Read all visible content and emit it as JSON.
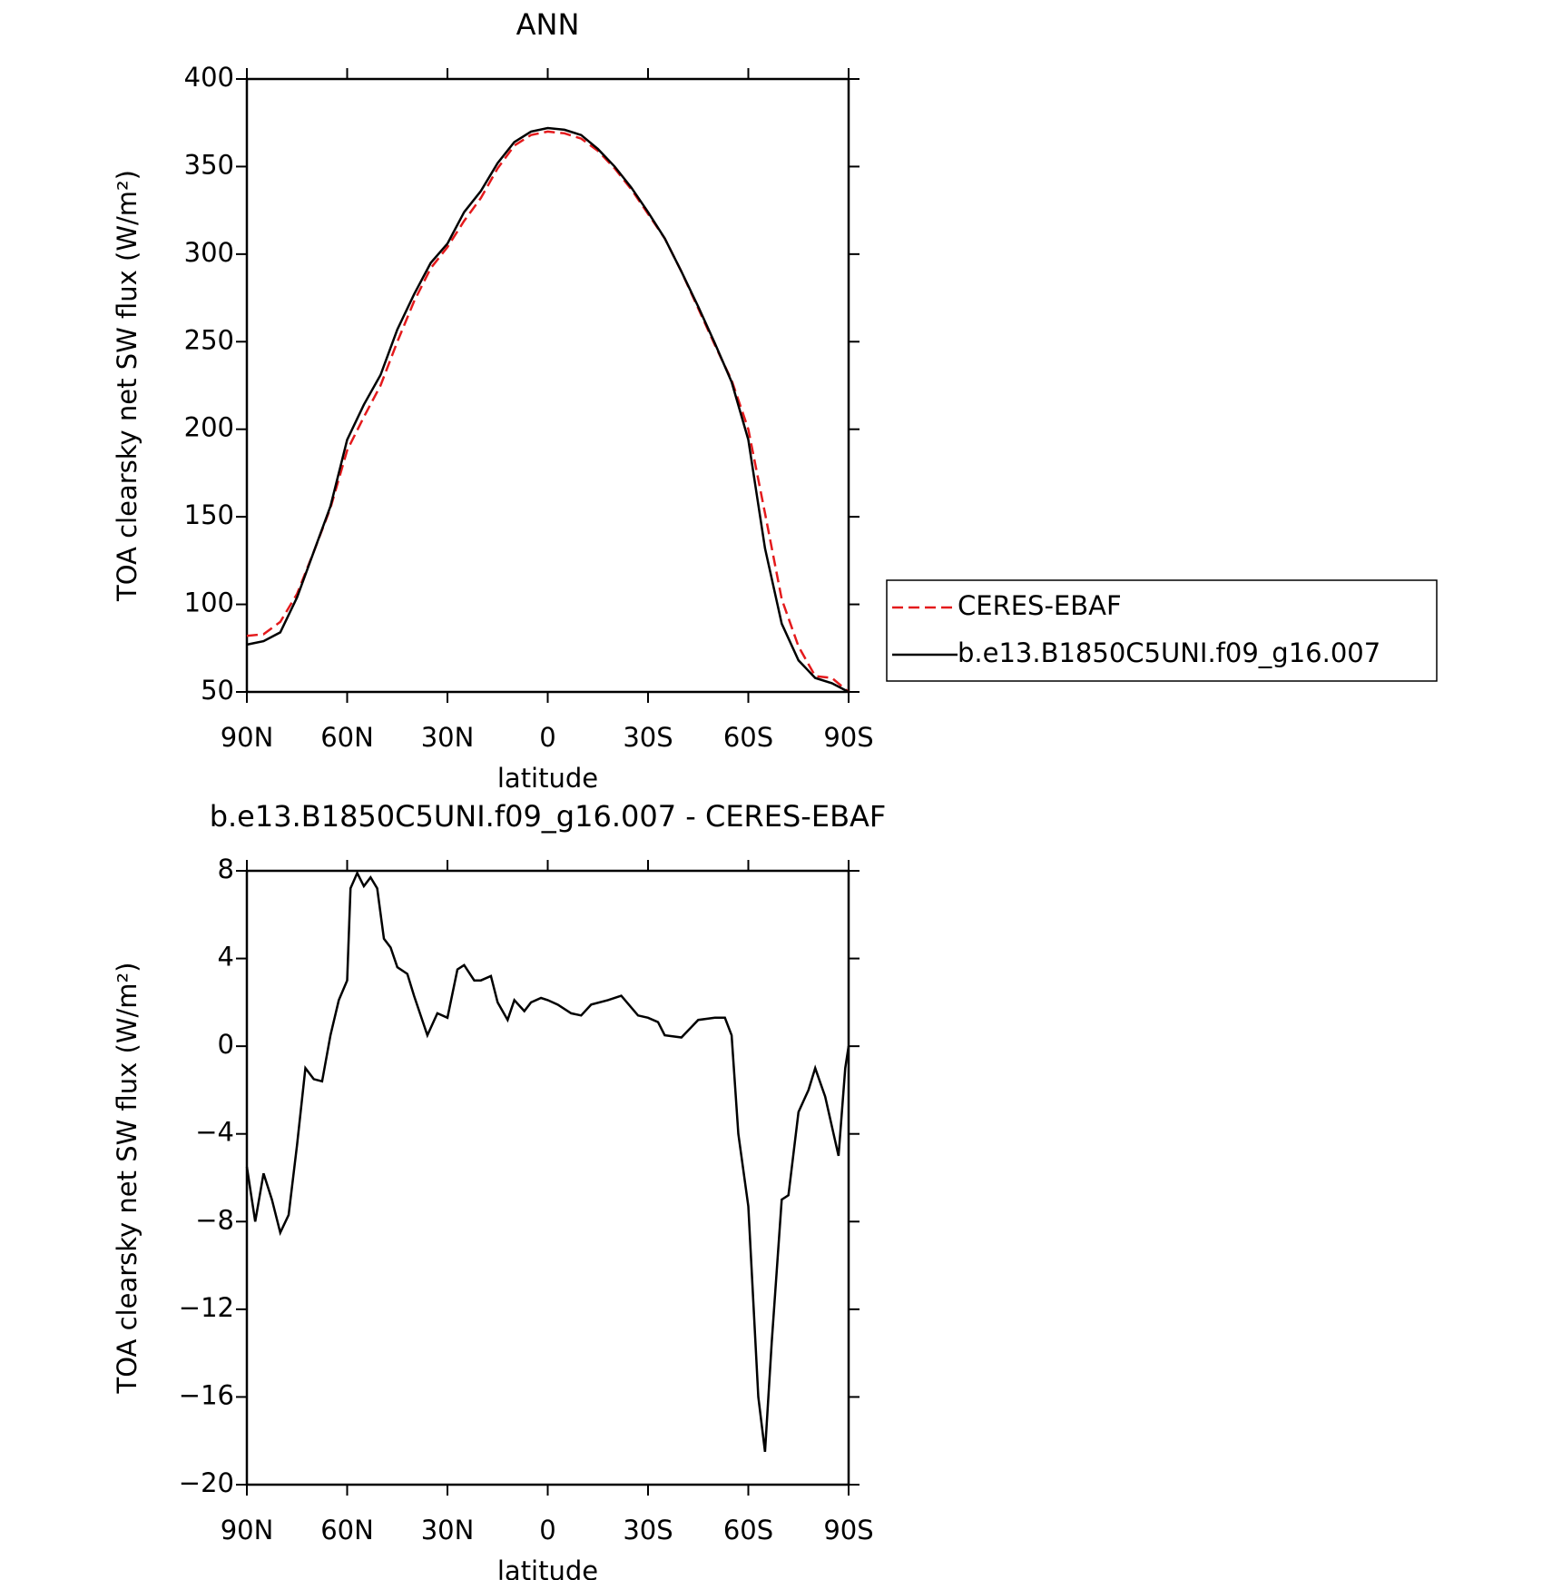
{
  "chart_data": [
    {
      "type": "line",
      "title": "ANN",
      "xlabel": "latitude",
      "ylabel": "TOA clearsky net SW flux (W/m²)",
      "x": [
        90,
        85,
        80,
        75,
        70,
        65,
        60,
        55,
        50,
        45,
        40,
        35,
        30,
        25,
        20,
        15,
        10,
        5,
        0,
        -5,
        -10,
        -15,
        -20,
        -25,
        -30,
        -35,
        -40,
        -45,
        -50,
        -55,
        -60,
        -65,
        -70,
        -75,
        -80,
        -85,
        -90
      ],
      "series": [
        {
          "name": "CERES-EBAF",
          "color": "#e41a1c",
          "dashed": true,
          "values": [
            82,
            83,
            90,
            106,
            130,
            155,
            188,
            207,
            225,
            250,
            273,
            292,
            304,
            319,
            332,
            349,
            362,
            368,
            370,
            369,
            366,
            359,
            349,
            337,
            323,
            309,
            290,
            269,
            248,
            228,
            200,
            152,
            103,
            76,
            59,
            58,
            50
          ]
        },
        {
          "name": "b.e13.B1850C5UNI.f09_g16.007",
          "color": "#000000",
          "dashed": false,
          "values": [
            77,
            79,
            84,
            104,
            130,
            156,
            194,
            214,
            231,
            257,
            277,
            295,
            306,
            324,
            336,
            352,
            364,
            370,
            372,
            371,
            368,
            360,
            350,
            338,
            324,
            309,
            290,
            270,
            249,
            227,
            194,
            132,
            89,
            68,
            58,
            55,
            50
          ]
        }
      ],
      "xlim": [
        90,
        -90
      ],
      "xticks": [
        {
          "value": 90,
          "label": "90N"
        },
        {
          "value": 60,
          "label": "60N"
        },
        {
          "value": 30,
          "label": "30N"
        },
        0,
        {
          "value": -30,
          "label": "30S"
        },
        {
          "value": -60,
          "label": "60S"
        },
        {
          "value": -90,
          "label": "90S"
        }
      ],
      "ylim": [
        50,
        400
      ],
      "yticks": [
        50,
        100,
        150,
        200,
        250,
        300,
        350,
        400
      ],
      "legend": "right"
    },
    {
      "type": "line",
      "title": "b.e13.B1850C5UNI.f09_g16.007 - CERES-EBAF",
      "xlabel": "latitude",
      "ylabel": "TOA clearsky net SW flux (W/m²)",
      "x": [
        90,
        87.5,
        85,
        82.5,
        80,
        77.5,
        75,
        72.5,
        70,
        67.5,
        65,
        62.5,
        60,
        59,
        57,
        55,
        53,
        51,
        49,
        47,
        45,
        42,
        40,
        36,
        33,
        30,
        27,
        25,
        22,
        20,
        17,
        15,
        12,
        10,
        7,
        5,
        2,
        0,
        -3,
        -7,
        -10,
        -13,
        -18,
        -22,
        -27,
        -30,
        -33,
        -35,
        -40,
        -45,
        -50,
        -53,
        -55,
        -57,
        -60,
        -63,
        -65,
        -67,
        -70,
        -72,
        -75,
        -78,
        -80,
        -83,
        -87,
        -89,
        -90
      ],
      "series": [
        {
          "name": "b.e13.B1850C5UNI.f09_g16.007 - CERES-EBAF",
          "color": "#000000",
          "dashed": false,
          "values": [
            -5.5,
            -8,
            -5.8,
            -7,
            -8.5,
            -7.7,
            -4.5,
            -1.0,
            -1.5,
            -1.6,
            0.5,
            2.1,
            3,
            7.2,
            7.9,
            7.3,
            7.7,
            7.2,
            4.9,
            4.5,
            3.6,
            3.3,
            2.3,
            0.5,
            1.5,
            1.3,
            3.5,
            3.7,
            3,
            3,
            3.2,
            2,
            1.2,
            2.1,
            1.6,
            2,
            2.2,
            2.1,
            1.9,
            1.5,
            1.4,
            1.9,
            2.1,
            2.3,
            1.4,
            1.3,
            1.1,
            0.5,
            0.4,
            1.2,
            1.3,
            1.3,
            0.5,
            -4,
            -7.3,
            -16,
            -18.5,
            -13.5,
            -7,
            -6.8,
            -3,
            -2,
            -1,
            -2.3,
            -5,
            -1,
            0
          ]
        }
      ],
      "xlim": [
        90,
        -90
      ],
      "xticks": [
        {
          "value": 90,
          "label": "90N"
        },
        {
          "value": 60,
          "label": "60N"
        },
        {
          "value": 30,
          "label": "30N"
        },
        0,
        {
          "value": -30,
          "label": "30S"
        },
        {
          "value": -60,
          "label": "60S"
        },
        {
          "value": -90,
          "label": "90S"
        }
      ],
      "ylim": [
        -20,
        8
      ],
      "yticks": [
        {
          "value": -20,
          "label": "−20"
        },
        {
          "value": -16,
          "label": "−16"
        },
        {
          "value": -12,
          "label": "−12"
        },
        {
          "value": -8,
          "label": "−8"
        },
        {
          "value": -4,
          "label": "−4"
        },
        0,
        4,
        8
      ]
    }
  ]
}
